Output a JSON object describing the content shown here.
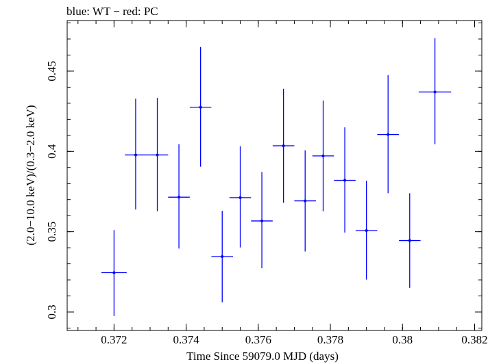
{
  "chart_data": {
    "type": "scatter",
    "title": "blue: WT − red: PC",
    "xlabel": "Time Since 59079.0 MJD (days)",
    "ylabel": "(2.0−10.0 keV)/(0.3−2.0 keV)",
    "xlim": [
      0.3707,
      0.3822
    ],
    "ylim": [
      0.2885,
      0.4815
    ],
    "x_ticks": [
      {
        "value": 0.372,
        "label": "0.372"
      },
      {
        "value": 0.374,
        "label": "0.374"
      },
      {
        "value": 0.376,
        "label": "0.376"
      },
      {
        "value": 0.378,
        "label": "0.378"
      },
      {
        "value": 0.38,
        "label": "0.38"
      },
      {
        "value": 0.382,
        "label": "0.382"
      }
    ],
    "y_ticks": [
      {
        "value": 0.3,
        "label": "0.3"
      },
      {
        "value": 0.35,
        "label": "0.35"
      },
      {
        "value": 0.4,
        "label": "0.4"
      },
      {
        "value": 0.45,
        "label": "0.45"
      }
    ],
    "x_minor_step": 0.0005,
    "y_minor_step": 0.01,
    "grid": false,
    "series": [
      {
        "color": "#0000ff",
        "points": [
          {
            "x": 0.372,
            "xerr": 0.00035,
            "y": 0.3245,
            "yerr_low": 0.027,
            "yerr_high": 0.0265
          },
          {
            "x": 0.3726,
            "xerr": 0.0003,
            "y": 0.3978,
            "yerr_low": 0.034,
            "yerr_high": 0.035
          },
          {
            "x": 0.3732,
            "xerr": 0.0003,
            "y": 0.3978,
            "yerr_low": 0.035,
            "yerr_high": 0.0355
          },
          {
            "x": 0.3738,
            "xerr": 0.0003,
            "y": 0.3715,
            "yerr_low": 0.032,
            "yerr_high": 0.033
          },
          {
            "x": 0.3744,
            "xerr": 0.0003,
            "y": 0.4275,
            "yerr_low": 0.037,
            "yerr_high": 0.0375
          },
          {
            "x": 0.375,
            "xerr": 0.0003,
            "y": 0.3345,
            "yerr_low": 0.0285,
            "yerr_high": 0.0285
          },
          {
            "x": 0.3755,
            "xerr": 0.0003,
            "y": 0.3712,
            "yerr_low": 0.031,
            "yerr_high": 0.032
          },
          {
            "x": 0.3761,
            "xerr": 0.0003,
            "y": 0.3567,
            "yerr_low": 0.0295,
            "yerr_high": 0.0305
          },
          {
            "x": 0.3767,
            "xerr": 0.0003,
            "y": 0.4035,
            "yerr_low": 0.0355,
            "yerr_high": 0.0355
          },
          {
            "x": 0.3773,
            "xerr": 0.0003,
            "y": 0.3692,
            "yerr_low": 0.0315,
            "yerr_high": 0.0315
          },
          {
            "x": 0.3778,
            "xerr": 0.0003,
            "y": 0.3972,
            "yerr_low": 0.0345,
            "yerr_high": 0.0345
          },
          {
            "x": 0.3784,
            "xerr": 0.0003,
            "y": 0.382,
            "yerr_low": 0.0325,
            "yerr_high": 0.033
          },
          {
            "x": 0.379,
            "xerr": 0.0003,
            "y": 0.3507,
            "yerr_low": 0.0305,
            "yerr_high": 0.031
          },
          {
            "x": 0.3796,
            "xerr": 0.0003,
            "y": 0.4105,
            "yerr_low": 0.0365,
            "yerr_high": 0.037
          },
          {
            "x": 0.3802,
            "xerr": 0.0003,
            "y": 0.3445,
            "yerr_low": 0.0295,
            "yerr_high": 0.0295
          },
          {
            "x": 0.3809,
            "xerr": 0.00045,
            "y": 0.437,
            "yerr_low": 0.0325,
            "yerr_high": 0.0335
          }
        ]
      }
    ]
  }
}
